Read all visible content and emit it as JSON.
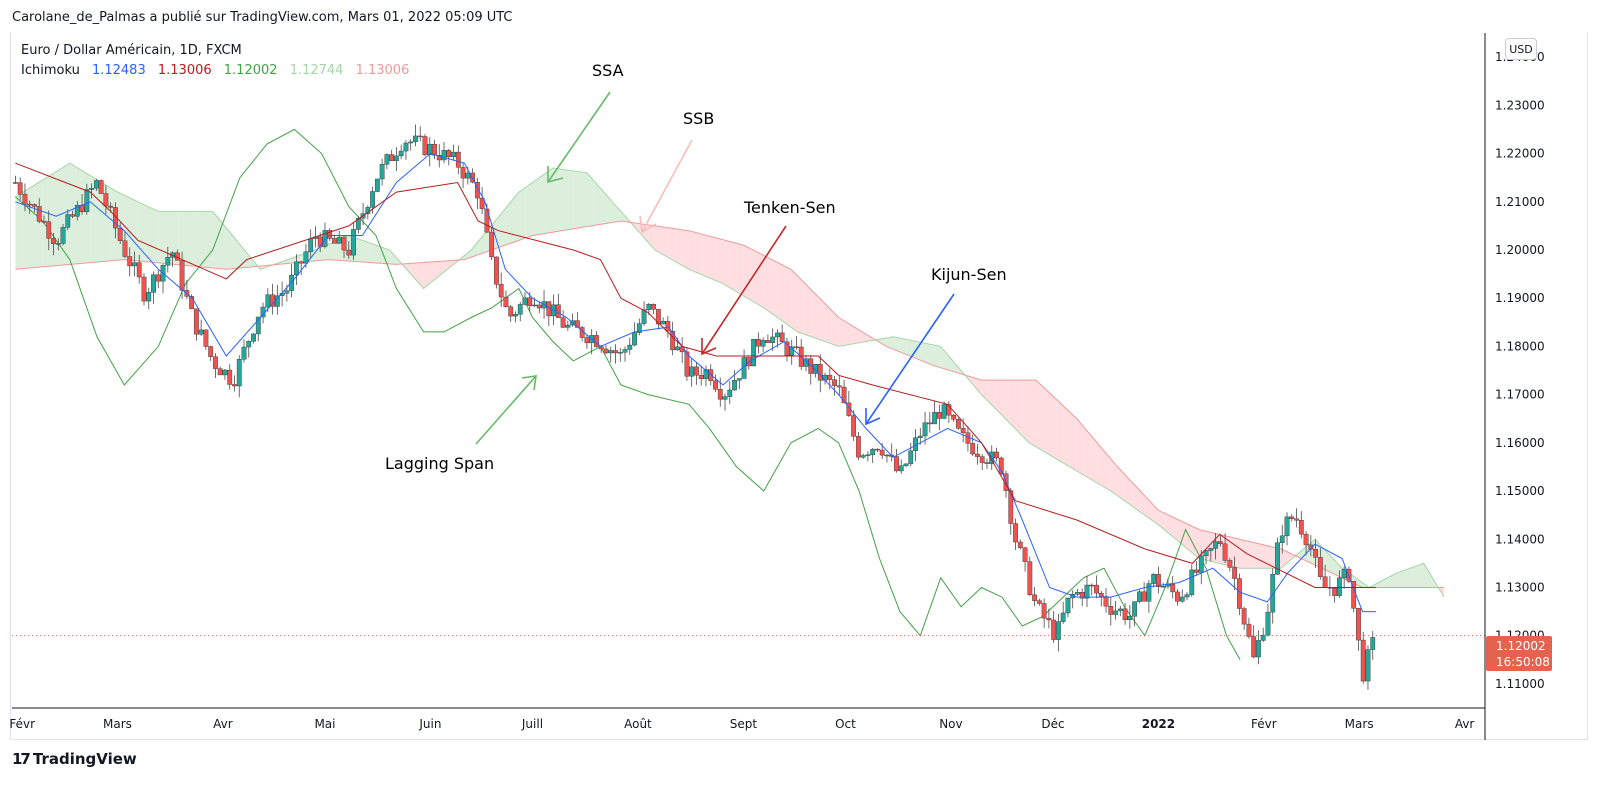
{
  "header": {
    "publisher_line": "Carolane_de_Palmas a publié sur TradingView.com, Mars 01, 2022 05:09 UTC"
  },
  "symbol": {
    "title": "Euro / Dollar Américain, 1D, FXCM"
  },
  "indicator": {
    "name": "Ichimoku",
    "values": [
      {
        "value": "1.12483",
        "color": "#2962ff"
      },
      {
        "value": "1.13006",
        "color": "#b71c1c"
      },
      {
        "value": "1.12002",
        "color": "#43a047"
      },
      {
        "value": "1.12744",
        "color": "#a5d6a7"
      },
      {
        "value": "1.13006",
        "color": "#ef9a9a"
      }
    ]
  },
  "currency_badge": "USD",
  "price_badge": {
    "price": "1.12002",
    "countdown": "16:50:08"
  },
  "annotations": [
    {
      "text": "SSA",
      "color": "#66bb6a"
    },
    {
      "text": "SSB",
      "color": "#f5a5a5"
    },
    {
      "text": "Tenken-Sen",
      "color": "#c62828"
    },
    {
      "text": "Kijun-Sen",
      "color": "#2962ff"
    },
    {
      "text": "Lagging Span",
      "color": "#66bb6a"
    }
  ],
  "footer": {
    "brand": "TradingView",
    "logo_glyph": "17"
  },
  "colors": {
    "up": "#26a69a",
    "down": "#ef5350",
    "tenkan": "#2962ff",
    "kijun": "#b71c1c",
    "lagging": "#43a047",
    "cloud_bull": "#c8e6c9",
    "cloud_bear": "#ffcdd2"
  },
  "chart_data": {
    "type": "candlestick",
    "title": "Euro / Dollar Américain, 1D, FXCM",
    "xlabel": "",
    "ylabel": "",
    "ylim": [
      1.105,
      1.245
    ],
    "y_ticks": [
      "1.24000",
      "1.23000",
      "1.22000",
      "1.21000",
      "1.20000",
      "1.19000",
      "1.18000",
      "1.17000",
      "1.16000",
      "1.15000",
      "1.14000",
      "1.13000",
      "1.12000",
      "1.11000"
    ],
    "x_ticks": [
      {
        "label": "Févr",
        "day": 0
      },
      {
        "label": "Mars",
        "day": 28
      },
      {
        "label": "Avr",
        "day": 59
      },
      {
        "label": "Mai",
        "day": 89
      },
      {
        "label": "Juin",
        "day": 120
      },
      {
        "label": "Juill",
        "day": 150
      },
      {
        "label": "Août",
        "day": 181
      },
      {
        "label": "Sept",
        "day": 212
      },
      {
        "label": "Oct",
        "day": 242
      },
      {
        "label": "Nov",
        "day": 273
      },
      {
        "label": "Déc",
        "day": 303
      },
      {
        "label": "2022",
        "day": 334,
        "bold": true
      },
      {
        "label": "Févr",
        "day": 365
      },
      {
        "label": "Mars",
        "day": 393
      },
      {
        "label": "Avr",
        "day": 424
      }
    ],
    "x_range_days": [
      -3,
      430
    ],
    "last_price": 1.12002,
    "close_path": [
      [
        -2,
        1.214
      ],
      [
        10,
        1.202
      ],
      [
        22,
        1.214
      ],
      [
        30,
        1.2
      ],
      [
        36,
        1.191
      ],
      [
        44,
        1.2
      ],
      [
        50,
        1.186
      ],
      [
        56,
        1.177
      ],
      [
        62,
        1.173
      ],
      [
        70,
        1.188
      ],
      [
        78,
        1.192
      ],
      [
        86,
        1.203
      ],
      [
        96,
        1.2
      ],
      [
        104,
        1.215
      ],
      [
        112,
        1.223
      ],
      [
        120,
        1.221
      ],
      [
        128,
        1.218
      ],
      [
        134,
        1.212
      ],
      [
        138,
        1.197
      ],
      [
        143,
        1.186
      ],
      [
        150,
        1.191
      ],
      [
        160,
        1.184
      ],
      [
        168,
        1.182
      ],
      [
        176,
        1.178
      ],
      [
        184,
        1.188
      ],
      [
        190,
        1.183
      ],
      [
        196,
        1.174
      ],
      [
        202,
        1.175
      ],
      [
        206,
        1.17
      ],
      [
        212,
        1.176
      ],
      [
        218,
        1.183
      ],
      [
        226,
        1.179
      ],
      [
        234,
        1.174
      ],
      [
        240,
        1.171
      ],
      [
        246,
        1.158
      ],
      [
        252,
        1.16
      ],
      [
        258,
        1.153
      ],
      [
        264,
        1.162
      ],
      [
        270,
        1.167
      ],
      [
        276,
        1.161
      ],
      [
        282,
        1.158
      ],
      [
        288,
        1.155
      ],
      [
        292,
        1.14
      ],
      [
        298,
        1.126
      ],
      [
        304,
        1.12
      ],
      [
        308,
        1.128
      ],
      [
        314,
        1.13
      ],
      [
        320,
        1.126
      ],
      [
        326,
        1.124
      ],
      [
        332,
        1.132
      ],
      [
        340,
        1.128
      ],
      [
        346,
        1.134
      ],
      [
        352,
        1.14
      ],
      [
        356,
        1.133
      ],
      [
        362,
        1.115
      ],
      [
        366,
        1.125
      ],
      [
        370,
        1.142
      ],
      [
        374,
        1.145
      ],
      [
        378,
        1.14
      ],
      [
        382,
        1.13
      ],
      [
        386,
        1.13
      ],
      [
        390,
        1.133
      ],
      [
        394,
        1.112
      ],
      [
        398,
        1.12
      ]
    ],
    "tenkan_path": [
      [
        -2,
        1.21
      ],
      [
        10,
        1.207
      ],
      [
        20,
        1.21
      ],
      [
        30,
        1.204
      ],
      [
        40,
        1.196
      ],
      [
        50,
        1.19
      ],
      [
        60,
        1.178
      ],
      [
        70,
        1.186
      ],
      [
        80,
        1.194
      ],
      [
        90,
        1.203
      ],
      [
        100,
        1.203
      ],
      [
        110,
        1.214
      ],
      [
        120,
        1.22
      ],
      [
        130,
        1.218
      ],
      [
        136,
        1.21
      ],
      [
        142,
        1.196
      ],
      [
        150,
        1.19
      ],
      [
        160,
        1.186
      ],
      [
        170,
        1.18
      ],
      [
        180,
        1.183
      ],
      [
        190,
        1.184
      ],
      [
        196,
        1.178
      ],
      [
        206,
        1.172
      ],
      [
        214,
        1.177
      ],
      [
        224,
        1.181
      ],
      [
        232,
        1.176
      ],
      [
        240,
        1.17
      ],
      [
        248,
        1.163
      ],
      [
        256,
        1.157
      ],
      [
        264,
        1.16
      ],
      [
        272,
        1.163
      ],
      [
        282,
        1.16
      ],
      [
        288,
        1.154
      ],
      [
        294,
        1.144
      ],
      [
        302,
        1.13
      ],
      [
        310,
        1.128
      ],
      [
        320,
        1.128
      ],
      [
        330,
        1.13
      ],
      [
        340,
        1.131
      ],
      [
        350,
        1.134
      ],
      [
        358,
        1.129
      ],
      [
        366,
        1.127
      ],
      [
        372,
        1.133
      ],
      [
        380,
        1.139
      ],
      [
        388,
        1.136
      ],
      [
        394,
        1.125
      ],
      [
        398,
        1.125
      ]
    ],
    "kijun_path": [
      [
        -2,
        1.218
      ],
      [
        20,
        1.212
      ],
      [
        26,
        1.208
      ],
      [
        34,
        1.202
      ],
      [
        60,
        1.194
      ],
      [
        66,
        1.198
      ],
      [
        96,
        1.205
      ],
      [
        110,
        1.212
      ],
      [
        128,
        1.214
      ],
      [
        134,
        1.206
      ],
      [
        140,
        1.204
      ],
      [
        162,
        1.2
      ],
      [
        170,
        1.198
      ],
      [
        176,
        1.19
      ],
      [
        184,
        1.187
      ],
      [
        194,
        1.18
      ],
      [
        204,
        1.178
      ],
      [
        234,
        1.178
      ],
      [
        240,
        1.174
      ],
      [
        250,
        1.172
      ],
      [
        272,
        1.168
      ],
      [
        282,
        1.16
      ],
      [
        292,
        1.148
      ],
      [
        310,
        1.144
      ],
      [
        330,
        1.138
      ],
      [
        344,
        1.135
      ],
      [
        352,
        1.141
      ],
      [
        360,
        1.137
      ],
      [
        380,
        1.13
      ],
      [
        398,
        1.13
      ]
    ],
    "lagging_path": [
      [
        -2,
        1.211
      ],
      [
        6,
        1.206
      ],
      [
        14,
        1.198
      ],
      [
        22,
        1.182
      ],
      [
        30,
        1.172
      ],
      [
        40,
        1.18
      ],
      [
        48,
        1.193
      ],
      [
        56,
        1.2
      ],
      [
        64,
        1.215
      ],
      [
        72,
        1.222
      ],
      [
        80,
        1.225
      ],
      [
        88,
        1.22
      ],
      [
        96,
        1.209
      ],
      [
        104,
        1.203
      ],
      [
        110,
        1.192
      ],
      [
        118,
        1.183
      ],
      [
        124,
        1.183
      ],
      [
        132,
        1.186
      ],
      [
        138,
        1.188
      ],
      [
        146,
        1.192
      ],
      [
        150,
        1.186
      ],
      [
        156,
        1.181
      ],
      [
        162,
        1.177
      ],
      [
        170,
        1.18
      ],
      [
        176,
        1.172
      ],
      [
        184,
        1.17
      ],
      [
        196,
        1.168
      ],
      [
        202,
        1.163
      ],
      [
        210,
        1.155
      ],
      [
        218,
        1.15
      ],
      [
        226,
        1.16
      ],
      [
        234,
        1.163
      ],
      [
        240,
        1.16
      ],
      [
        246,
        1.15
      ],
      [
        252,
        1.136
      ],
      [
        258,
        1.125
      ],
      [
        264,
        1.12
      ],
      [
        270,
        1.132
      ],
      [
        276,
        1.126
      ],
      [
        282,
        1.13
      ],
      [
        288,
        1.128
      ],
      [
        294,
        1.122
      ],
      [
        300,
        1.124
      ],
      [
        306,
        1.128
      ],
      [
        312,
        1.132
      ],
      [
        318,
        1.134
      ],
      [
        324,
        1.126
      ],
      [
        330,
        1.12
      ],
      [
        336,
        1.13
      ],
      [
        342,
        1.142
      ],
      [
        348,
        1.134
      ],
      [
        354,
        1.12
      ],
      [
        358,
        1.115
      ]
    ],
    "ssa_path": [
      [
        -2,
        1.211
      ],
      [
        14,
        1.218
      ],
      [
        28,
        1.212
      ],
      [
        40,
        1.208
      ],
      [
        56,
        1.208
      ],
      [
        70,
        1.196
      ],
      [
        86,
        1.2
      ],
      [
        96,
        1.203
      ],
      [
        108,
        1.2
      ],
      [
        118,
        1.192
      ],
      [
        132,
        1.2
      ],
      [
        146,
        1.212
      ],
      [
        156,
        1.217
      ],
      [
        166,
        1.216
      ],
      [
        176,
        1.208
      ],
      [
        186,
        1.2
      ],
      [
        196,
        1.196
      ],
      [
        206,
        1.193
      ],
      [
        218,
        1.188
      ],
      [
        228,
        1.183
      ],
      [
        240,
        1.18
      ],
      [
        256,
        1.182
      ],
      [
        270,
        1.18
      ],
      [
        282,
        1.17
      ],
      [
        296,
        1.16
      ],
      [
        308,
        1.155
      ],
      [
        320,
        1.15
      ],
      [
        334,
        1.143
      ],
      [
        346,
        1.136
      ],
      [
        358,
        1.134
      ],
      [
        370,
        1.134
      ],
      [
        380,
        1.14
      ],
      [
        388,
        1.134
      ],
      [
        396,
        1.13
      ],
      [
        404,
        1.133
      ],
      [
        412,
        1.135
      ],
      [
        418,
        1.128
      ]
    ],
    "ssb_path": [
      [
        -2,
        1.196
      ],
      [
        30,
        1.198
      ],
      [
        60,
        1.196
      ],
      [
        90,
        1.198
      ],
      [
        110,
        1.197
      ],
      [
        130,
        1.198
      ],
      [
        150,
        1.203
      ],
      [
        176,
        1.206
      ],
      [
        196,
        1.204
      ],
      [
        212,
        1.201
      ],
      [
        226,
        1.196
      ],
      [
        240,
        1.186
      ],
      [
        254,
        1.18
      ],
      [
        268,
        1.176
      ],
      [
        282,
        1.173
      ],
      [
        298,
        1.173
      ],
      [
        310,
        1.165
      ],
      [
        322,
        1.155
      ],
      [
        334,
        1.146
      ],
      [
        346,
        1.142
      ],
      [
        358,
        1.14
      ],
      [
        370,
        1.138
      ],
      [
        382,
        1.134
      ],
      [
        394,
        1.13
      ],
      [
        404,
        1.13
      ],
      [
        418,
        1.13
      ]
    ]
  }
}
